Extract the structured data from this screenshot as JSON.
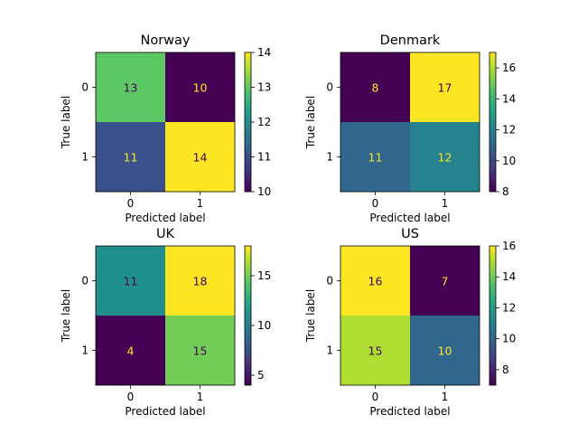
{
  "chart_data": [
    {
      "type": "heatmap",
      "title": "Norway",
      "xlabel": "Predicted label",
      "ylabel": "True label",
      "x_ticks": [
        "0",
        "1"
      ],
      "y_ticks": [
        "0",
        "1"
      ],
      "matrix": [
        [
          13,
          10
        ],
        [
          11,
          14
        ]
      ],
      "colorbar": {
        "range": [
          10,
          14
        ],
        "ticks": [
          "10",
          "11",
          "12",
          "13",
          "14"
        ]
      },
      "colormap": "viridis"
    },
    {
      "type": "heatmap",
      "title": "Denmark",
      "xlabel": "Predicted label",
      "ylabel": "True label",
      "x_ticks": [
        "0",
        "1"
      ],
      "y_ticks": [
        "0",
        "1"
      ],
      "matrix": [
        [
          8,
          17
        ],
        [
          11,
          12
        ]
      ],
      "colorbar": {
        "range": [
          8,
          17
        ],
        "ticks": [
          "8",
          "10",
          "12",
          "14",
          "16"
        ]
      },
      "colormap": "viridis"
    },
    {
      "type": "heatmap",
      "title": "UK",
      "xlabel": "Predicted label",
      "ylabel": "True label",
      "x_ticks": [
        "0",
        "1"
      ],
      "y_ticks": [
        "0",
        "1"
      ],
      "matrix": [
        [
          11,
          18
        ],
        [
          4,
          15
        ]
      ],
      "colorbar": {
        "range": [
          4,
          18
        ],
        "ticks": [
          "5",
          "10",
          "15"
        ]
      },
      "colormap": "viridis"
    },
    {
      "type": "heatmap",
      "title": "US",
      "xlabel": "Predicted label",
      "ylabel": "True label",
      "x_ticks": [
        "0",
        "1"
      ],
      "y_ticks": [
        "0",
        "1"
      ],
      "matrix": [
        [
          16,
          7
        ],
        [
          15,
          10
        ]
      ],
      "colorbar": {
        "range": [
          7,
          16
        ],
        "ticks": [
          "8",
          "10",
          "12",
          "14",
          "16"
        ]
      },
      "colormap": "viridis"
    }
  ]
}
